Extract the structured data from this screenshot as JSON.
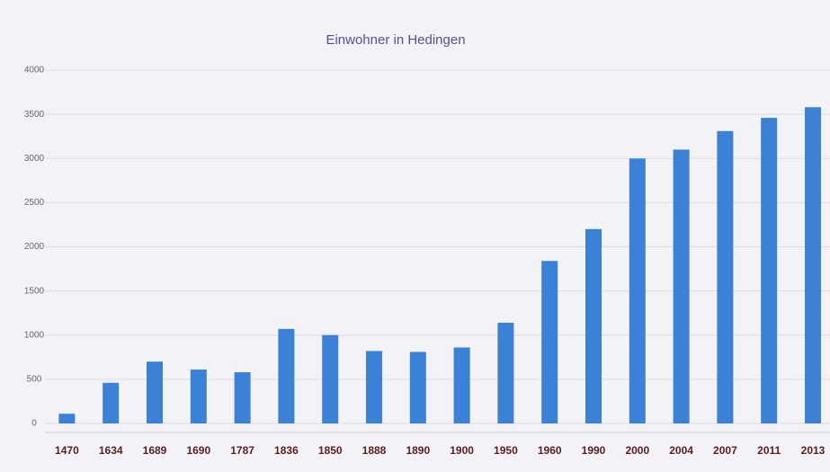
{
  "chart_data": {
    "type": "bar",
    "title": "Einwohner in Hedingen",
    "categories": [
      "1470",
      "1634",
      "1689",
      "1690",
      "1787",
      "1836",
      "1850",
      "1888",
      "1890",
      "1900",
      "1950",
      "1960",
      "1990",
      "2000",
      "2004",
      "2007",
      "2011",
      "2013"
    ],
    "values": [
      110,
      460,
      700,
      610,
      580,
      1070,
      1000,
      820,
      810,
      860,
      1140,
      1840,
      2200,
      3000,
      3100,
      3310,
      3460,
      3580
    ],
    "color": "#3b82d6",
    "ylim": [
      0,
      4000
    ],
    "yticks": [
      0,
      500,
      1000,
      1500,
      2000,
      2500,
      3000,
      3500,
      4000
    ],
    "grid": true
  }
}
